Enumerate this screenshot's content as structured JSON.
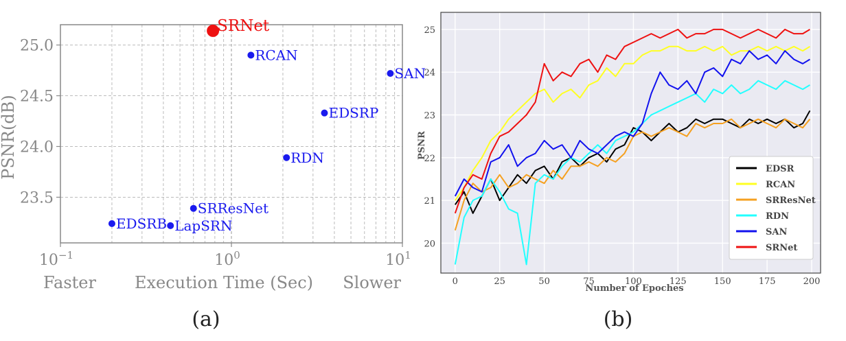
{
  "chart_data": [
    {
      "type": "scatter",
      "caption": "(a)",
      "xscale": "log",
      "xlim": [
        0.1,
        10
      ],
      "ylim": [
        23.05,
        25.2
      ],
      "ylabel": "PSNR(dB)",
      "xlabel": "Execution Time (Sec)",
      "xlabel_left": "Faster",
      "xlabel_right": "Slower",
      "grid": true,
      "xtick_labels": [
        "10",
        "10",
        "10"
      ],
      "xtick_exponents": [
        "−1",
        "0",
        "1"
      ],
      "xtick_values": [
        0.1,
        1,
        10
      ],
      "ytick_values": [
        23.5,
        24.0,
        24.5,
        25.0
      ],
      "ytick_labels": [
        "23.5",
        "24.0",
        "24.5",
        "25.0"
      ],
      "colors": {
        "default": "#1a1aee",
        "highlight": "#ee1111",
        "axis": "#888888"
      },
      "points": [
        {
          "name": "SRNet",
          "x": 0.78,
          "y": 25.14,
          "highlight": true
        },
        {
          "name": "RCAN",
          "x": 1.3,
          "y": 24.9
        },
        {
          "name": "SAN",
          "x": 8.5,
          "y": 24.72
        },
        {
          "name": "EDSRP",
          "x": 3.5,
          "y": 24.33
        },
        {
          "name": "RDN",
          "x": 2.1,
          "y": 23.89
        },
        {
          "name": "SRResNet",
          "x": 0.6,
          "y": 23.39
        },
        {
          "name": "EDSRB",
          "x": 0.2,
          "y": 23.24
        },
        {
          "name": "LapSRN",
          "x": 0.44,
          "y": 23.22
        }
      ]
    },
    {
      "type": "line",
      "caption": "(b)",
      "xlabel": "Number of Epoches",
      "ylabel": "PSNR",
      "xlim": [
        -8,
        205
      ],
      "ylim": [
        19.3,
        25.4
      ],
      "grid": true,
      "legend": "bottom-right",
      "xtick_values": [
        0,
        25,
        50,
        75,
        100,
        125,
        150,
        175,
        200
      ],
      "xtick_labels": [
        "0",
        "25",
        "50",
        "75",
        "100",
        "125",
        "150",
        "175",
        "200"
      ],
      "ytick_values": [
        20,
        21,
        22,
        23,
        24,
        25
      ],
      "ytick_labels": [
        "20",
        "21",
        "22",
        "23",
        "24",
        "25"
      ],
      "x": [
        0,
        5,
        10,
        15,
        20,
        25,
        30,
        35,
        40,
        45,
        50,
        55,
        60,
        65,
        70,
        75,
        80,
        85,
        90,
        95,
        100,
        105,
        110,
        115,
        120,
        125,
        130,
        135,
        140,
        145,
        150,
        155,
        160,
        165,
        170,
        175,
        180,
        185,
        190,
        195,
        199
      ],
      "series": [
        {
          "name": "EDSR",
          "color": "#000000",
          "values": [
            20.9,
            21.2,
            20.7,
            21.1,
            21.5,
            21.0,
            21.3,
            21.6,
            21.4,
            21.7,
            21.8,
            21.5,
            21.9,
            22.0,
            21.8,
            22.0,
            22.1,
            21.9,
            22.2,
            22.3,
            22.7,
            22.6,
            22.4,
            22.6,
            22.8,
            22.6,
            22.7,
            22.9,
            22.8,
            22.9,
            22.9,
            22.8,
            22.7,
            22.9,
            22.8,
            22.9,
            22.8,
            22.9,
            22.7,
            22.8,
            23.1
          ]
        },
        {
          "name": "RCAN",
          "color": "#ffff22",
          "values": [
            21.0,
            21.3,
            21.7,
            22.0,
            22.4,
            22.6,
            22.9,
            23.1,
            23.3,
            23.5,
            23.6,
            23.3,
            23.5,
            23.6,
            23.4,
            23.7,
            23.8,
            24.1,
            23.9,
            24.2,
            24.2,
            24.4,
            24.5,
            24.5,
            24.6,
            24.6,
            24.5,
            24.5,
            24.6,
            24.5,
            24.6,
            24.4,
            24.5,
            24.5,
            24.6,
            24.5,
            24.6,
            24.5,
            24.6,
            24.5,
            24.6
          ]
        },
        {
          "name": "SRResNet",
          "color": "#f5a020",
          "values": [
            20.3,
            21.0,
            21.4,
            21.2,
            21.3,
            21.6,
            21.3,
            21.4,
            21.6,
            21.5,
            21.4,
            21.7,
            21.5,
            21.8,
            21.8,
            21.9,
            21.8,
            22.0,
            21.9,
            22.1,
            22.5,
            22.6,
            22.5,
            22.6,
            22.7,
            22.6,
            22.5,
            22.8,
            22.7,
            22.8,
            22.8,
            22.9,
            22.7,
            22.8,
            22.9,
            22.8,
            22.7,
            22.9,
            22.8,
            22.7,
            22.9
          ]
        },
        {
          "name": "RDN",
          "color": "#22ffff",
          "values": [
            19.5,
            20.6,
            21.0,
            21.1,
            21.5,
            21.2,
            20.8,
            20.7,
            19.5,
            21.4,
            21.6,
            21.5,
            21.8,
            22.0,
            21.9,
            22.1,
            22.3,
            22.1,
            22.4,
            22.5,
            22.6,
            22.8,
            23.0,
            23.1,
            23.2,
            23.3,
            23.4,
            23.5,
            23.3,
            23.6,
            23.5,
            23.7,
            23.5,
            23.6,
            23.8,
            23.7,
            23.6,
            23.8,
            23.7,
            23.6,
            23.7
          ]
        },
        {
          "name": "SAN",
          "color": "#1111ee",
          "values": [
            21.1,
            21.5,
            21.3,
            21.2,
            21.9,
            22.0,
            22.3,
            21.8,
            22.0,
            22.1,
            22.4,
            22.2,
            22.3,
            22.0,
            22.4,
            22.2,
            22.1,
            22.3,
            22.5,
            22.6,
            22.5,
            22.8,
            23.5,
            24.0,
            23.7,
            23.6,
            23.8,
            23.5,
            24.0,
            24.1,
            23.9,
            24.3,
            24.2,
            24.5,
            24.3,
            24.4,
            24.2,
            24.5,
            24.3,
            24.2,
            24.3
          ]
        },
        {
          "name": "SRNet",
          "color": "#ee1111",
          "values": [
            20.7,
            21.3,
            21.6,
            21.5,
            22.1,
            22.5,
            22.6,
            22.8,
            23.0,
            23.3,
            24.2,
            23.8,
            24.0,
            23.9,
            24.2,
            24.3,
            24.0,
            24.4,
            24.3,
            24.6,
            24.7,
            24.8,
            24.9,
            24.8,
            24.9,
            25.0,
            24.8,
            24.9,
            24.9,
            25.0,
            25.0,
            24.9,
            24.8,
            24.9,
            25.0,
            24.9,
            24.8,
            25.0,
            24.9,
            24.9,
            25.0
          ]
        }
      ]
    }
  ]
}
